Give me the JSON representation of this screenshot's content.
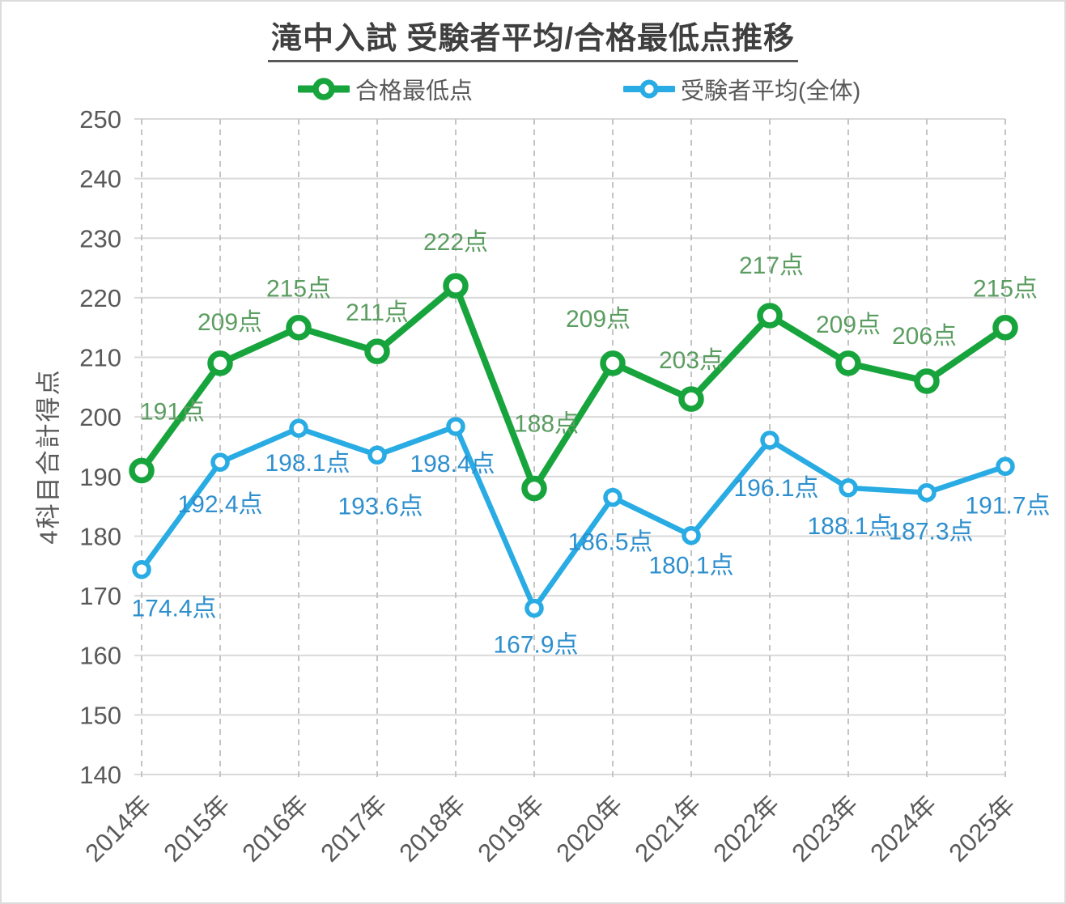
{
  "title": {
    "text": "滝中入試 受験者平均/合格最低点推移",
    "color": "#3f3f3f"
  },
  "y_axis_title": "4科目合計得点",
  "legend": {
    "position": "top",
    "text_color": "#595959",
    "items": [
      {
        "label": "合格最低点",
        "color": "#18A43C"
      },
      {
        "label": "受験者平均(全体)",
        "color": "#29ABE3"
      }
    ]
  },
  "chart_data": {
    "type": "line",
    "title": "滝中入試 受験者平均/合格最低点推移",
    "xlabel": "",
    "ylabel": "4科目合計得点",
    "categories": [
      "2014年",
      "2015年",
      "2016年",
      "2017年",
      "2018年",
      "2019年",
      "2020年",
      "2021年",
      "2022年",
      "2023年",
      "2024年",
      "2025年"
    ],
    "series": [
      {
        "name": "合格最低点",
        "color": "#18A43C",
        "label_color": "#5B9D60",
        "values": [
          191,
          209,
          215,
          211,
          222,
          188,
          209,
          203,
          217,
          209,
          206,
          215
        ],
        "labels": [
          "191点",
          "209点",
          "215点",
          "211点",
          "222点",
          "188点",
          "209点",
          "203点",
          "217点",
          "209点",
          "206点",
          "215点"
        ],
        "label_side": "above"
      },
      {
        "name": "受験者平均(全体)",
        "color": "#29ABE3",
        "label_color": "#2E8FCE",
        "values": [
          174.4,
          192.4,
          198.1,
          193.6,
          198.4,
          167.9,
          186.5,
          180.1,
          196.1,
          188.1,
          187.3,
          191.7
        ],
        "labels": [
          "174.4点",
          "192.4点",
          "198.1点",
          "193.6点",
          "198.4点",
          "167.9点",
          "186.5点",
          "180.1点",
          "196.1点",
          "188.1点",
          "187.3点",
          "191.7点"
        ],
        "label_side": "below"
      }
    ],
    "ylim": [
      140,
      250
    ],
    "ytick_step": 10,
    "ytick_labels": [
      "250",
      "240",
      "230",
      "220",
      "210",
      "200",
      "190",
      "180",
      "170",
      "160",
      "150",
      "140"
    ],
    "grid": {
      "horizontal": "solid",
      "vertical": "dashed"
    },
    "grid_color_h": "#d9d9d9",
    "grid_color_v": "#c4c4c4",
    "axis_text_color": "#595959",
    "legend_position": "top"
  }
}
